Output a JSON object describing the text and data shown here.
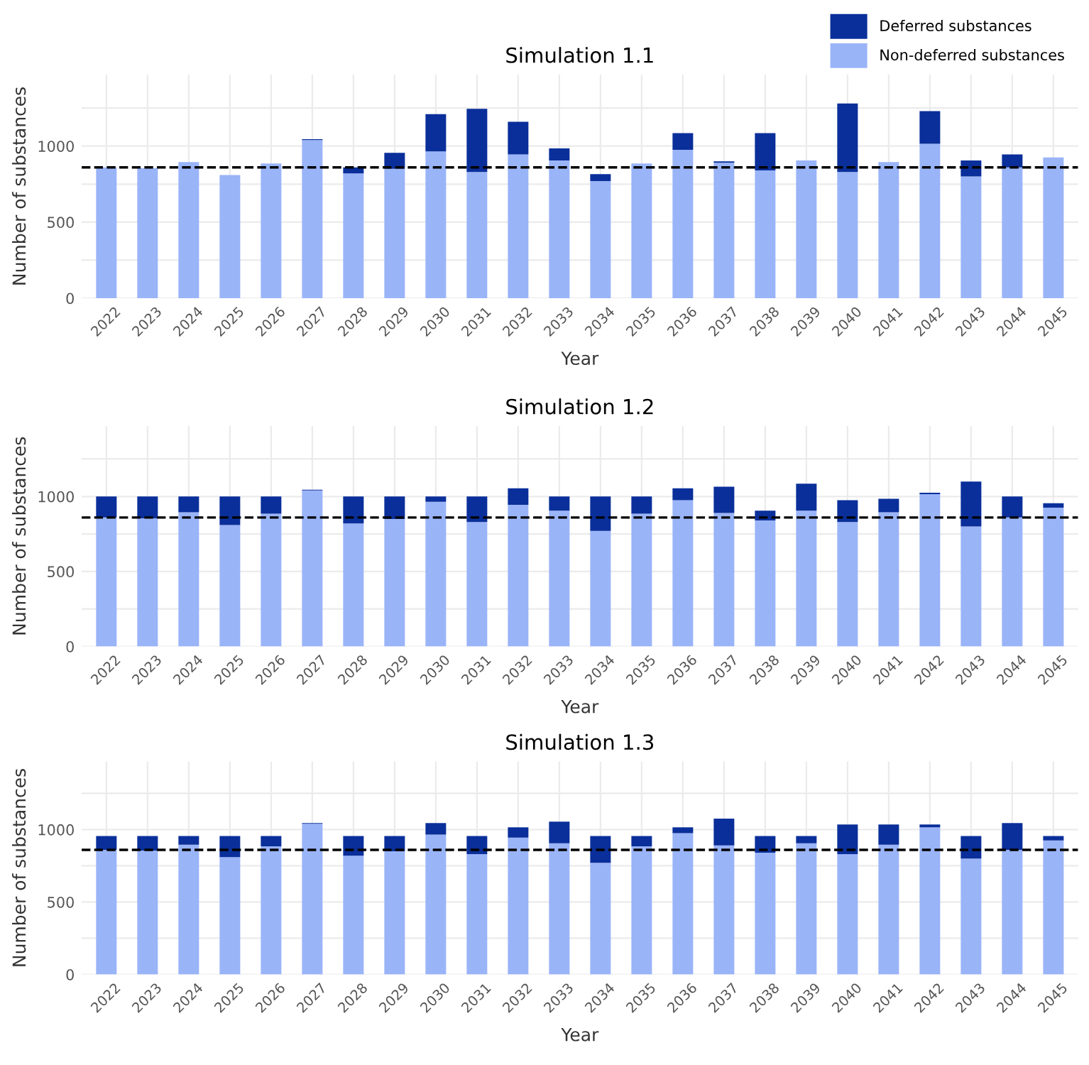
{
  "chart_data": [
    {
      "type": "bar",
      "title": "Simulation 1.1",
      "xlabel": "Year",
      "ylabel": "Number of substances",
      "stacked": true,
      "grid": true,
      "legend": "top right",
      "categories": [
        "2022",
        "2023",
        "2024",
        "2025",
        "2026",
        "2027",
        "2028",
        "2029",
        "2030",
        "2031",
        "2032",
        "2033",
        "2034",
        "2035",
        "2036",
        "2037",
        "2038",
        "2039",
        "2040",
        "2041",
        "2042",
        "2043",
        "2044",
        "2045"
      ],
      "series": [
        {
          "name": "Non-deferred substances",
          "color": "#9ab4f8",
          "values": [
            860,
            855,
            895,
            810,
            885,
            1040,
            820,
            850,
            965,
            830,
            945,
            905,
            770,
            885,
            975,
            890,
            840,
            905,
            830,
            895,
            1015,
            800,
            860,
            925
          ]
        },
        {
          "name": "Deferred substances",
          "color": "#0a2f9a",
          "values": [
            0,
            0,
            0,
            0,
            0,
            5,
            40,
            105,
            245,
            415,
            215,
            80,
            45,
            0,
            110,
            10,
            245,
            0,
            450,
            0,
            215,
            105,
            85,
            0
          ]
        }
      ],
      "ylim": [
        0,
        1470
      ],
      "yticks": [
        0,
        {
          "value": 250,
          "label": null
        },
        500,
        {
          "value": 750,
          "label": null
        },
        1000,
        {
          "value": 1250,
          "label": null
        }
      ],
      "ref_lines": [
        {
          "axis": "y",
          "value": 860,
          "color": "#000000",
          "line_style": "dashed"
        }
      ]
    },
    {
      "type": "bar",
      "title": "Simulation 1.2",
      "xlabel": "Year",
      "ylabel": "Number of substances",
      "stacked": true,
      "grid": true,
      "categories": [
        "2022",
        "2023",
        "2024",
        "2025",
        "2026",
        "2027",
        "2028",
        "2029",
        "2030",
        "2031",
        "2032",
        "2033",
        "2034",
        "2035",
        "2036",
        "2037",
        "2038",
        "2039",
        "2040",
        "2041",
        "2042",
        "2043",
        "2044",
        "2045"
      ],
      "series": [
        {
          "color": "#9ab4f8",
          "values": [
            860,
            855,
            895,
            810,
            885,
            1040,
            820,
            850,
            965,
            830,
            945,
            905,
            770,
            885,
            975,
            890,
            840,
            905,
            830,
            895,
            1015,
            800,
            860,
            925
          ]
        },
        {
          "color": "#0a2f9a",
          "values": [
            140,
            145,
            105,
            190,
            115,
            5,
            180,
            150,
            35,
            170,
            110,
            95,
            230,
            115,
            80,
            175,
            65,
            180,
            145,
            90,
            10,
            300,
            140,
            30
          ]
        }
      ],
      "ylim": [
        0,
        1470
      ],
      "yticks": [
        0,
        {
          "value": 250,
          "label": null
        },
        500,
        {
          "value": 750,
          "label": null
        },
        1000,
        {
          "value": 1250,
          "label": null
        }
      ],
      "ref_lines": [
        {
          "axis": "y",
          "value": 860,
          "color": "#000000",
          "line_style": "dashed"
        }
      ]
    },
    {
      "type": "bar",
      "title": "Simulation 1.3",
      "xlabel": "Year",
      "ylabel": "Number of substances",
      "stacked": true,
      "grid": true,
      "categories": [
        "2022",
        "2023",
        "2024",
        "2025",
        "2026",
        "2027",
        "2028",
        "2029",
        "2030",
        "2031",
        "2032",
        "2033",
        "2034",
        "2035",
        "2036",
        "2037",
        "2038",
        "2039",
        "2040",
        "2041",
        "2042",
        "2043",
        "2044",
        "2045"
      ],
      "series": [
        {
          "color": "#9ab4f8",
          "values": [
            860,
            855,
            895,
            810,
            885,
            1040,
            820,
            850,
            965,
            830,
            945,
            905,
            770,
            885,
            975,
            890,
            840,
            905,
            830,
            895,
            1015,
            800,
            860,
            925
          ]
        },
        {
          "color": "#0a2f9a",
          "values": [
            95,
            100,
            60,
            145,
            70,
            5,
            135,
            105,
            80,
            125,
            70,
            150,
            185,
            70,
            40,
            185,
            115,
            50,
            205,
            140,
            20,
            155,
            185,
            30
          ]
        }
      ],
      "ylim": [
        0,
        1470
      ],
      "yticks": [
        0,
        {
          "value": 250,
          "label": null
        },
        500,
        {
          "value": 750,
          "label": null
        },
        1000,
        {
          "value": 1250,
          "label": null
        }
      ],
      "ref_lines": [
        {
          "axis": "y",
          "value": 860,
          "color": "#000000",
          "line_style": "dashed"
        }
      ]
    }
  ]
}
